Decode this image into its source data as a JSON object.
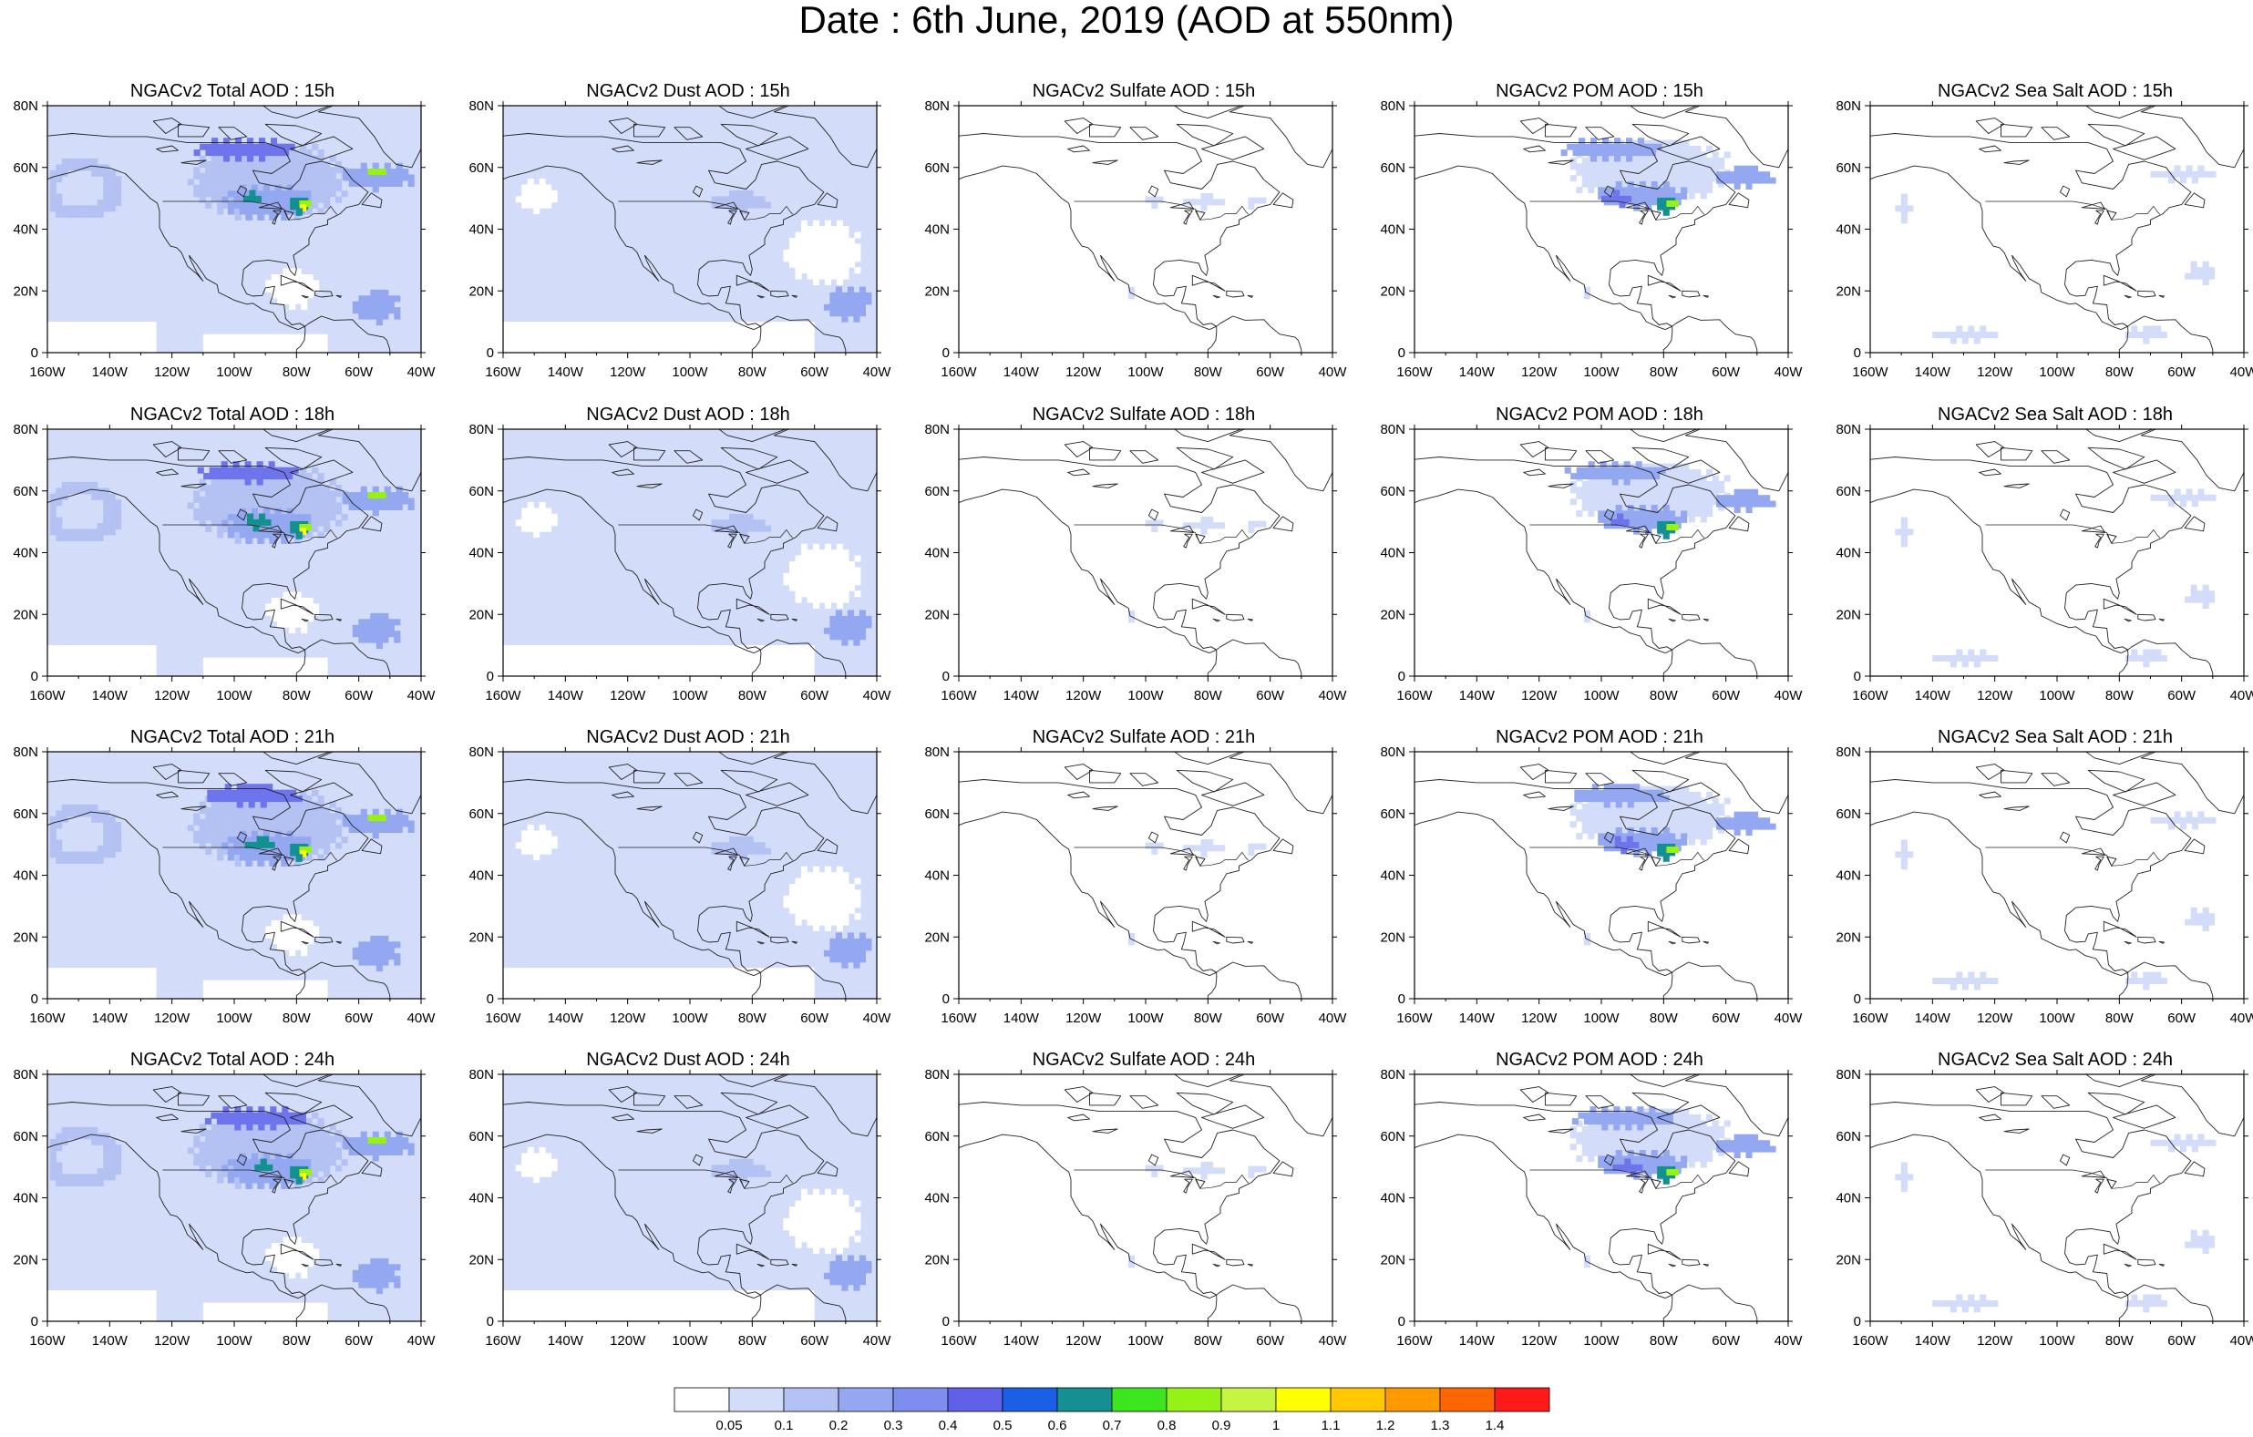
{
  "title": "Date : 6th June, 2019 (AOD at 550nm)",
  "species": [
    {
      "key": "total",
      "label": "NGACv2 Total AOD"
    },
    {
      "key": "dust",
      "label": "NGACv2 Dust AOD"
    },
    {
      "key": "sulfate",
      "label": "NGACv2 Sulfate AOD"
    },
    {
      "key": "pom",
      "label": "NGACv2 POM AOD"
    },
    {
      "key": "seasalt",
      "label": "NGACv2 Sea Salt AOD"
    }
  ],
  "panels": [
    [
      "NGACv2 Total AOD : 15h",
      "NGACv2 Dust AOD : 15h",
      "NGACv2 Sulfate AOD : 15h",
      "NGACv2 POM AOD : 15h",
      "NGACv2 Sea Salt AOD : 15h"
    ],
    [
      "NGACv2 Total AOD : 18h",
      "NGACv2 Dust AOD : 18h",
      "NGACv2 Sulfate AOD : 18h",
      "NGACv2 POM AOD : 18h",
      "NGACv2 Sea Salt AOD : 18h"
    ],
    [
      "NGACv2 Total AOD : 21h",
      "NGACv2 Dust AOD : 21h",
      "NGACv2 Sulfate AOD : 21h",
      "NGACv2 POM AOD : 21h",
      "NGACv2 Sea Salt AOD : 21h"
    ],
    [
      "NGACv2 Total AOD : 24h",
      "NGACv2 Dust AOD : 24h",
      "NGACv2 Sulfate AOD : 24h",
      "NGACv2 POM AOD : 24h",
      "NGACv2 Sea Salt  AOD : 24h"
    ]
  ],
  "map_extent": {
    "lon_min": -160,
    "lon_max": -40,
    "lat_min": 0,
    "lat_max": 80
  },
  "x_ticks": [
    "160W",
    "140W",
    "120W",
    "100W",
    "80W",
    "60W",
    "40W"
  ],
  "y_ticks": [
    "0",
    "20N",
    "40N",
    "60N",
    "80N"
  ],
  "colorbar": {
    "labels": [
      "0.05",
      "0.1",
      "0.2",
      "0.3",
      "0.4",
      "0.5",
      "0.6",
      "0.7",
      "0.8",
      "0.9",
      "1",
      "1.1",
      "1.2",
      "1.3",
      "1.4"
    ],
    "colors": [
      "#ffffff",
      "#d3dcf8",
      "#b3c2f3",
      "#93a8f0",
      "#7d8ef0",
      "#5f62e8",
      "#1a5fe6",
      "#13908f",
      "#3de51f",
      "#96f216",
      "#c5f542",
      "#ffff00",
      "#ffc800",
      "#ff9900",
      "#ff6600",
      "#ff1a1a"
    ]
  },
  "color_classes": {
    "light": "#d3dcf8",
    "medium": "#b3c2f3",
    "strong": "#93a8f0",
    "very_strong": "#6e74ec",
    "high": "#13908f",
    "peak": "#96f216",
    "max": "#ffff00"
  },
  "plume_features": [
    {
      "name": "hudson-bay-band",
      "lon": -97,
      "lat": 66,
      "rlon": 14,
      "rlat": 3
    },
    {
      "name": "quebec-plume",
      "lon": -80,
      "lat": 47,
      "rlon": 5,
      "rlat": 3
    },
    {
      "name": "ontario-plume",
      "lon": -95,
      "lat": 49,
      "rlon": 5,
      "rlat": 2
    },
    {
      "name": "labrador-plume",
      "lon": -55,
      "lat": 57,
      "rlon": 8,
      "rlat": 2
    },
    {
      "name": "atlantic-dust",
      "lon": -55,
      "lat": 14,
      "rlon": 7,
      "rlat": 5
    }
  ]
}
